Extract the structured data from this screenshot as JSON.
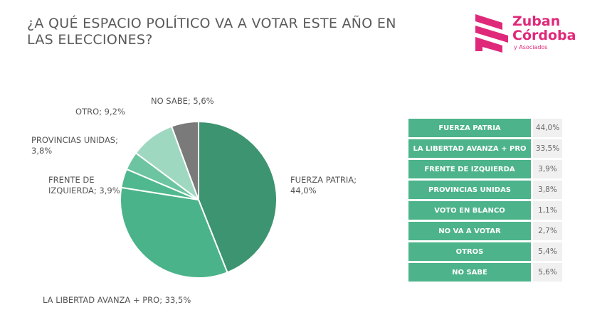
{
  "title": "¿A QUÉ ESPACIO POLÍTICO VA A VOTAR ESTE AÑO EN LAS ELECCIONES?",
  "logo": {
    "line1": "Zuban",
    "line2": "Córdoba",
    "line3": "y Asociados",
    "color": "#e0287a"
  },
  "chart_data": {
    "type": "pie",
    "slices": [
      {
        "label": "FUERZA PATRIA; 44,0%",
        "value": 44.0,
        "color": "#3d9470"
      },
      {
        "label": "LA LIBERTAD AVANZA + PRO; 33,5%",
        "value": 33.5,
        "color": "#4bb38a"
      },
      {
        "label": "FRENTE DE IZQUIERDA; 3,9%",
        "value": 3.9,
        "color": "#50b88e"
      },
      {
        "label": "PROVINCIAS UNIDAS; 3,8%",
        "value": 3.8,
        "color": "#6cc5a0"
      },
      {
        "label": "OTRO; 9,2%",
        "value": 9.2,
        "color": "#9fd8c0"
      },
      {
        "label": "NO SABE; 5,6%",
        "value": 5.6,
        "color": "#7a7a7a"
      }
    ]
  },
  "table": {
    "color": "#4cb38a",
    "rows": [
      {
        "name": "FUERZA PATRIA",
        "value": "44,0%"
      },
      {
        "name": "LA LIBERTAD AVANZA + PRO",
        "value": "33,5%"
      },
      {
        "name": "FRENTE DE IZQUIERDA",
        "value": "3,9%"
      },
      {
        "name": "PROVINCIAS UNIDAS",
        "value": "3,8%"
      },
      {
        "name": "VOTO EN BLANCO",
        "value": "1,1%"
      },
      {
        "name": "NO VA A VOTAR",
        "value": "2,7%"
      },
      {
        "name": "OTROS",
        "value": "5,4%"
      },
      {
        "name": "NO SABE",
        "value": "5,6%"
      }
    ]
  }
}
